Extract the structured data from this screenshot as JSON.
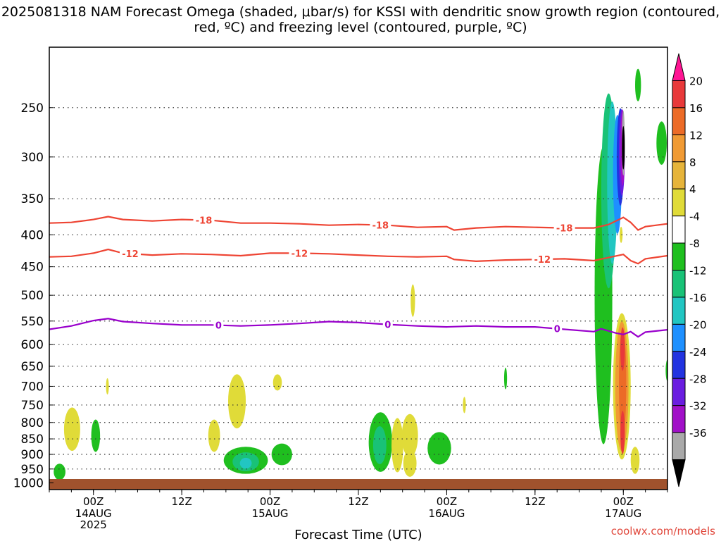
{
  "chart_data": {
    "type": "heatmap",
    "title": "2025081318 NAM Forecast Omega (shaded, μbar/s) for KSSI with dendritic snow growth region (contoured, red, ºC) and freezing level (contoured, purple, ºC)",
    "xlabel": "Forecast Time (UTC)",
    "ylabel": "",
    "x_ticks": [
      {
        "label": "00Z",
        "sub": [
          "14AUG",
          "2025"
        ],
        "hour": 6
      },
      {
        "label": "12Z",
        "sub": [],
        "hour": 18
      },
      {
        "label": "00Z",
        "sub": [
          "15AUG"
        ],
        "hour": 30
      },
      {
        "label": "12Z",
        "sub": [],
        "hour": 42
      },
      {
        "label": "00Z",
        "sub": [
          "16AUG"
        ],
        "hour": 54
      },
      {
        "label": "12Z",
        "sub": [],
        "hour": 66
      },
      {
        "label": "00Z",
        "sub": [
          "17AUG"
        ],
        "hour": 78
      }
    ],
    "xlim": [
      0,
      84
    ],
    "y_ticks": [
      "250",
      "300",
      "350",
      "400",
      "450",
      "500",
      "550",
      "600",
      "650",
      "700",
      "750",
      "800",
      "850",
      "900",
      "950",
      "1000"
    ],
    "ylim": [
      200,
      1025
    ],
    "y_log": true,
    "colorbar": {
      "labels": [
        "20",
        "16",
        "12",
        "8",
        "4",
        "-4",
        "-8",
        "-12",
        "-16",
        "-20",
        "-24",
        "-28",
        "-32",
        "-36"
      ],
      "colors": [
        "#ff1493",
        "#e8393a",
        "#ec6b27",
        "#f09a34",
        "#e6b43a",
        "#e0db38",
        "#ffffff",
        "#1fbf1f",
        "#19c277",
        "#22c6c2",
        "#1e90ff",
        "#2233e0",
        "#6a1de0",
        "#a110c8",
        "#a9a9a9",
        "#000000"
      ]
    },
    "isotherms": [
      {
        "label": "-18",
        "color": "#ee4433",
        "x": [
          0,
          3,
          6,
          8,
          10,
          14,
          18,
          22,
          26,
          30,
          34,
          38,
          42,
          46,
          50,
          54,
          55,
          58,
          62,
          66,
          70,
          74,
          76,
          78,
          79,
          80,
          81,
          84
        ],
        "p": [
          383,
          382,
          378,
          374,
          378,
          380,
          378,
          379,
          383,
          383,
          384,
          386,
          385,
          386,
          389,
          388,
          393,
          390,
          388,
          389,
          390,
          390,
          385,
          375,
          382,
          393,
          388,
          384
        ],
        "label_x": [
          21,
          45,
          70
        ]
      },
      {
        "label": "-12",
        "color": "#ee4433",
        "x": [
          0,
          3,
          6,
          8,
          10,
          14,
          18,
          22,
          26,
          30,
          34,
          38,
          42,
          46,
          50,
          54,
          55,
          58,
          62,
          66,
          70,
          74,
          76,
          78,
          79,
          80,
          81,
          84
        ],
        "p": [
          434,
          433,
          428,
          422,
          428,
          431,
          429,
          430,
          432,
          428,
          428,
          429,
          431,
          433,
          434,
          433,
          438,
          441,
          439,
          438,
          437,
          440,
          435,
          430,
          440,
          445,
          437,
          432
        ],
        "label_x": [
          11,
          34,
          67
        ]
      },
      {
        "label": "0",
        "color": "#9900cc",
        "x": [
          0,
          3,
          6,
          8,
          10,
          14,
          18,
          22,
          26,
          30,
          34,
          38,
          42,
          46,
          50,
          54,
          58,
          62,
          66,
          70,
          74,
          75,
          77,
          78,
          79,
          80,
          81,
          84
        ],
        "p": [
          567,
          560,
          549,
          545,
          551,
          555,
          558,
          558,
          560,
          558,
          555,
          551,
          553,
          557,
          560,
          562,
          560,
          562,
          562,
          567,
          572,
          566,
          575,
          578,
          572,
          583,
          573,
          568
        ],
        "label_x": [
          23,
          46,
          69
        ]
      }
    ],
    "omega_regions": [
      {
        "cx": 3.1,
        "p": 820,
        "rx": 1.1,
        "ry": 0.08,
        "color": "#e0db38"
      },
      {
        "cx": 7.9,
        "p": 700,
        "rx": 0.15,
        "ry": 0.03,
        "color": "#e0db38"
      },
      {
        "cx": 6.3,
        "p": 840,
        "rx": 0.6,
        "ry": 0.06,
        "color": "#1fbf1f"
      },
      {
        "cx": 1.4,
        "p": 960,
        "rx": 0.8,
        "ry": 0.03,
        "color": "#1fbf1f"
      },
      {
        "cx": 22.4,
        "p": 840,
        "rx": 0.8,
        "ry": 0.06,
        "color": "#e0db38"
      },
      {
        "cx": 25.5,
        "p": 740,
        "rx": 1.2,
        "ry": 0.1,
        "color": "#e0db38"
      },
      {
        "cx": 31.0,
        "p": 690,
        "rx": 0.6,
        "ry": 0.03,
        "color": "#e0db38"
      },
      {
        "cx": 26.7,
        "p": 920,
        "rx": 3.0,
        "ry": 0.05,
        "color": "#1fbf1f"
      },
      {
        "cx": 26.7,
        "p": 925,
        "rx": 1.8,
        "ry": 0.035,
        "color": "#19c277"
      },
      {
        "cx": 26.7,
        "p": 930,
        "rx": 0.8,
        "ry": 0.02,
        "color": "#22c6c2"
      },
      {
        "cx": 31.6,
        "p": 900,
        "rx": 1.4,
        "ry": 0.04,
        "color": "#1fbf1f"
      },
      {
        "cx": 49.4,
        "p": 510,
        "rx": 0.3,
        "ry": 0.06,
        "color": "#e0db38"
      },
      {
        "cx": 45.0,
        "p": 860,
        "rx": 1.6,
        "ry": 0.11,
        "color": "#1fbf1f"
      },
      {
        "cx": 44.9,
        "p": 870,
        "rx": 0.9,
        "ry": 0.07,
        "color": "#19c277"
      },
      {
        "cx": 47.3,
        "p": 870,
        "rx": 0.8,
        "ry": 0.1,
        "color": "#e0db38"
      },
      {
        "cx": 49.0,
        "p": 840,
        "rx": 1.1,
        "ry": 0.08,
        "color": "#e0db38"
      },
      {
        "cx": 49.0,
        "p": 930,
        "rx": 0.9,
        "ry": 0.05,
        "color": "#e0db38"
      },
      {
        "cx": 53.0,
        "p": 880,
        "rx": 1.6,
        "ry": 0.06,
        "color": "#1fbf1f"
      },
      {
        "cx": 56.4,
        "p": 750,
        "rx": 0.2,
        "ry": 0.03,
        "color": "#e0db38"
      },
      {
        "cx": 62.0,
        "p": 680,
        "rx": 0.2,
        "ry": 0.04,
        "color": "#1fbf1f"
      },
      {
        "cx": 75.3,
        "p": 500,
        "rx": 1.2,
        "ry": 0.55,
        "color": "#1fbf1f"
      },
      {
        "cx": 76.0,
        "p": 340,
        "rx": 1.0,
        "ry": 0.36,
        "color": "#19c277"
      },
      {
        "cx": 76.5,
        "p": 330,
        "rx": 0.7,
        "ry": 0.3,
        "color": "#22c6c2"
      },
      {
        "cx": 77.2,
        "p": 320,
        "rx": 0.6,
        "ry": 0.22,
        "color": "#1e90ff"
      },
      {
        "cx": 77.6,
        "p": 300,
        "rx": 0.5,
        "ry": 0.18,
        "color": "#2233e0"
      },
      {
        "cx": 77.8,
        "p": 295,
        "rx": 0.4,
        "ry": 0.16,
        "color": "#6a1de0"
      },
      {
        "cx": 77.9,
        "p": 290,
        "rx": 0.3,
        "ry": 0.14,
        "color": "#a110c8"
      },
      {
        "cx": 78.0,
        "p": 285,
        "rx": 0.2,
        "ry": 0.12,
        "color": "#a9a9a9"
      },
      {
        "cx": 78.0,
        "p": 290,
        "rx": 0.12,
        "ry": 0.08,
        "color": "#000000"
      },
      {
        "cx": 80.0,
        "p": 230,
        "rx": 0.4,
        "ry": 0.06,
        "color": "#1fbf1f"
      },
      {
        "cx": 83.2,
        "p": 285,
        "rx": 0.7,
        "ry": 0.08,
        "color": "#1fbf1f"
      },
      {
        "cx": 84.0,
        "p": 660,
        "rx": 0.25,
        "ry": 0.04,
        "color": "#1fbf1f"
      },
      {
        "cx": 77.7,
        "p": 400,
        "rx": 0.2,
        "ry": 0.03,
        "color": "#e0db38"
      },
      {
        "cx": 77.8,
        "p": 700,
        "rx": 1.2,
        "ry": 0.27,
        "color": "#e0db38"
      },
      {
        "cx": 77.8,
        "p": 700,
        "rx": 0.9,
        "ry": 0.24,
        "color": "#f09a34"
      },
      {
        "cx": 77.9,
        "p": 690,
        "rx": 0.5,
        "ry": 0.2,
        "color": "#ec6b27"
      },
      {
        "cx": 77.9,
        "p": 830,
        "rx": 0.3,
        "ry": 0.08,
        "color": "#e8393a"
      },
      {
        "cx": 77.9,
        "p": 610,
        "rx": 0.3,
        "ry": 0.08,
        "color": "#e8393a"
      },
      {
        "cx": 79.6,
        "p": 920,
        "rx": 0.6,
        "ry": 0.05,
        "color": "#e0db38"
      }
    ]
  },
  "credit": "coolwx.com/models"
}
